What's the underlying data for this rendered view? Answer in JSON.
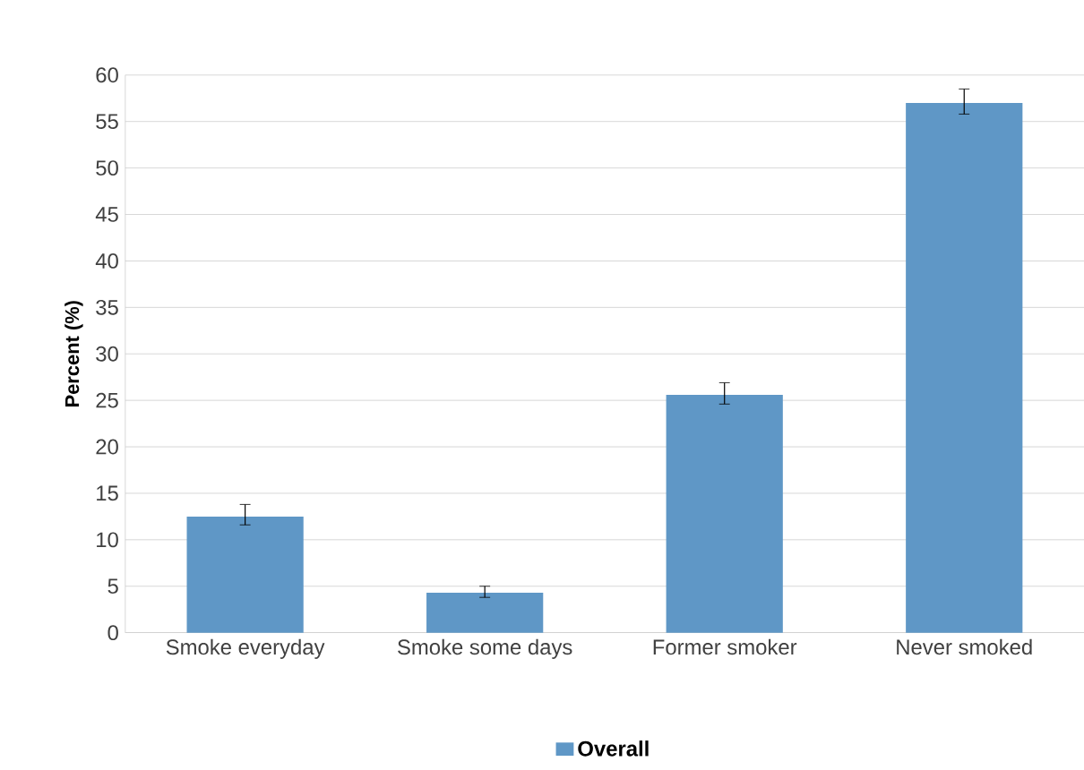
{
  "chart_data": {
    "type": "bar",
    "ylabel": "Percent (%)",
    "categories": [
      "Smoke everyday",
      "Smoke some days",
      "Former smoker",
      "Never smoked"
    ],
    "series": [
      {
        "name": "Overall",
        "color": "#5f97c6",
        "values": [
          12.5,
          4.3,
          25.6,
          57.0
        ],
        "errors": [
          [
            11.6,
            13.8
          ],
          [
            3.8,
            5.0
          ],
          [
            24.6,
            26.9
          ],
          [
            55.8,
            58.5
          ]
        ]
      }
    ],
    "ylim": [
      0,
      60
    ],
    "yticks": [
      0,
      5,
      10,
      15,
      20,
      25,
      30,
      35,
      40,
      45,
      50,
      55,
      60
    ],
    "grid": "y",
    "legend": "bottom"
  }
}
